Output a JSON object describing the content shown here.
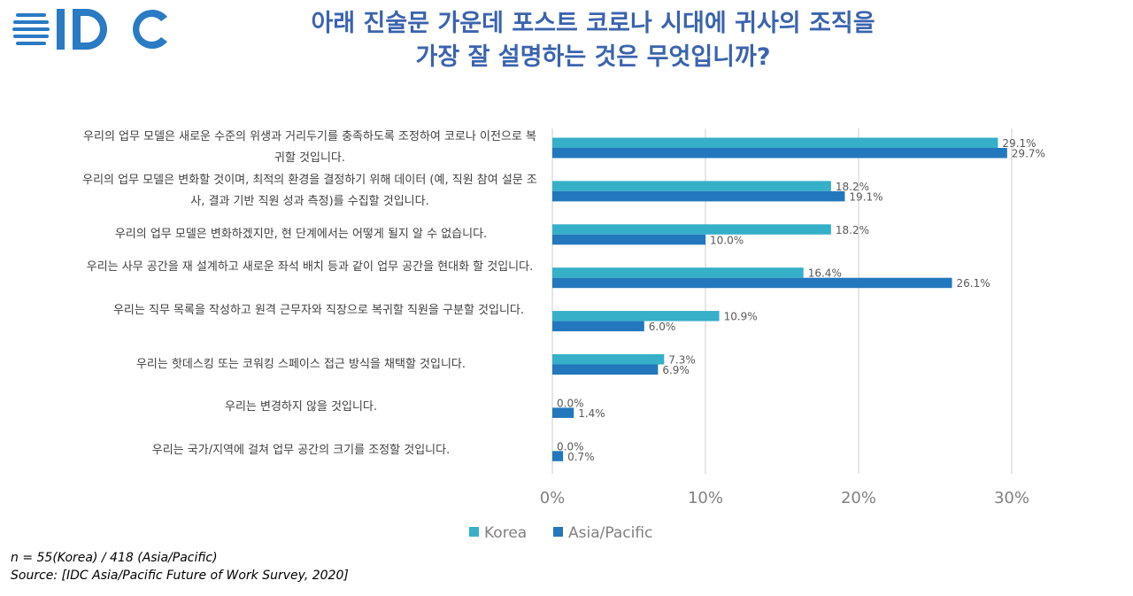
{
  "logo_text": "IDC",
  "chart_data": {
    "type": "bar",
    "orientation": "horizontal",
    "title": [
      "아래 진술문 가운데 포스트 코로나 시대에 귀사의 조직을",
      "가장 잘 설명하는 것은 무엇입니까?"
    ],
    "categories": [
      "우리의 업무 모델은 새로운 수준의 위생과 거리두기를 충족하도록 조정하여 코로나 이전으로 복귀할 것입니다.",
      "우리의 업무 모델은 변화할 것이며, 최적의 환경을 결정하기 위해 데이터 (예, 직원 참여 설문 조사, 결과 기반 직원 성과 측정)를 수집할 것입니다.",
      "우리의 업무 모델은 변화하겠지만, 현 단계에서는 어떻게 될지 알 수 없습니다.",
      "우리는 사무 공간을 재 설계하고 새로운 좌석 배치 등과 같이 업무 공간을 현대화 할 것입니다.",
      "우리는 직무 목록을 작성하고 원격 근무자와 직장으로 복귀할 직원을 구분할 것입니다.",
      "우리는 핫데스킹 또는 코워킹 스페이스 접근 방식을 채택할 것입니다.",
      "우리는 변경하지 않을 것입니다.",
      "우리는 국가/지역에 걸쳐 업무 공간의 크기를 조정할 것입니다."
    ],
    "series": [
      {
        "name": "Korea",
        "color": "#36AFC8",
        "values": [
          29.1,
          18.2,
          18.2,
          16.4,
          10.9,
          7.3,
          0.0,
          0.0
        ]
      },
      {
        "name": "Asia/Pacific",
        "color": "#2377BD",
        "values": [
          29.7,
          19.1,
          10.0,
          26.1,
          6.0,
          6.9,
          1.4,
          0.7
        ]
      }
    ],
    "xlim": [
      0,
      30
    ],
    "xticks": [
      "0%",
      "10%",
      "20%",
      "30%"
    ],
    "grid": true,
    "legend": "bottom"
  },
  "footnotes": {
    "sample": "n = 55(Korea) / 418 (Asia/Pacific)",
    "source": "Source: [IDC Asia/Pacific Future of Work Survey, 2020]"
  }
}
